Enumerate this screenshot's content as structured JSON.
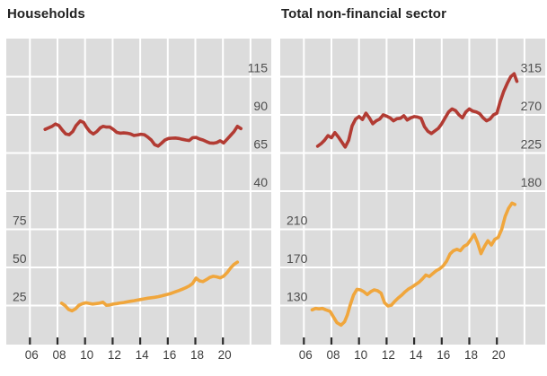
{
  "colors": {
    "red_line": "#b23b33",
    "orange_line": "#f0a63c",
    "plot_background": "#dcdcdc",
    "gridline": "#ffffff",
    "tick_mark": "#2b2b2b",
    "y_axis_label": "#4d4d4d",
    "x_axis_label": "#3d3d3d",
    "title": "#222222"
  },
  "chart_data": [
    {
      "type": "line",
      "title": "Households",
      "x_ticks": [
        "06",
        "08",
        "10",
        "12",
        "14",
        "16",
        "18",
        "20"
      ],
      "x_tick_years": [
        2006,
        2008,
        2010,
        2012,
        2014,
        2016,
        2018,
        2020
      ],
      "grid": true,
      "series": [
        {
          "name": "households-upper-line",
          "color_key": "red_line",
          "axis_side": "right",
          "axis_labels": [
            "115",
            "90",
            "65",
            "40"
          ],
          "axis_first_value": 115,
          "axis_step": 25,
          "x": [
            2007.1,
            2007.35,
            2007.6,
            2007.85,
            2008.1,
            2008.35,
            2008.6,
            2008.85,
            2009.1,
            2009.35,
            2009.65,
            2009.9,
            2010.1,
            2010.35,
            2010.6,
            2010.85,
            2011.1,
            2011.3,
            2011.55,
            2011.8,
            2012.05,
            2012.3,
            2012.55,
            2012.8,
            2013.05,
            2013.3,
            2013.55,
            2013.8,
            2014.05,
            2014.3,
            2014.55,
            2014.8,
            2015.05,
            2015.3,
            2015.55,
            2015.8,
            2016.05,
            2016.3,
            2016.55,
            2016.8,
            2017.05,
            2017.3,
            2017.55,
            2017.8,
            2018.05,
            2018.3,
            2018.55,
            2018.8,
            2019.05,
            2019.3,
            2019.55,
            2019.8,
            2020.05,
            2020.3,
            2020.55,
            2020.8,
            2021.05,
            2021.3
          ],
          "values": [
            80.5,
            81.5,
            82.5,
            84,
            83,
            80,
            77.5,
            77,
            79,
            83,
            86,
            85,
            82,
            79,
            77.5,
            79,
            81.5,
            82.5,
            82,
            82,
            80.5,
            78.5,
            78,
            78.2,
            78,
            77.5,
            76.5,
            76.8,
            77.3,
            77,
            75.5,
            73.5,
            70.5,
            69.5,
            71.5,
            73.5,
            74.5,
            74.7,
            74.8,
            74.5,
            74,
            73.5,
            73.2,
            75,
            75.2,
            74.2,
            73.5,
            72.5,
            71.6,
            71.4,
            71.8,
            73,
            71.6,
            74,
            76.5,
            79,
            82.5,
            81
          ]
        },
        {
          "name": "households-lower-line",
          "color_key": "orange_line",
          "axis_side": "left",
          "axis_labels": [
            "75",
            "50",
            "25"
          ],
          "axis_first_value": 75,
          "axis_step": 25,
          "x": [
            2008.3,
            2008.55,
            2008.8,
            2009.05,
            2009.3,
            2009.55,
            2009.8,
            2010.05,
            2010.3,
            2010.55,
            2010.8,
            2011.05,
            2011.3,
            2011.55,
            2011.8,
            2012.05,
            2012.3,
            2012.55,
            2012.8,
            2013.05,
            2013.3,
            2013.55,
            2013.8,
            2014.05,
            2014.3,
            2014.55,
            2014.8,
            2015.05,
            2015.3,
            2015.55,
            2015.8,
            2016.05,
            2016.3,
            2016.55,
            2016.8,
            2017.05,
            2017.3,
            2017.55,
            2017.8,
            2018.05,
            2018.3,
            2018.55,
            2018.8,
            2019.05,
            2019.3,
            2019.55,
            2019.8,
            2020.05,
            2020.3,
            2020.55,
            2020.8,
            2021.05
          ],
          "values": [
            26.5,
            25,
            22.5,
            21.5,
            22.8,
            25.2,
            26.2,
            26.8,
            26.4,
            26,
            26.3,
            26.6,
            27.2,
            25.2,
            25.4,
            26,
            26.3,
            26.7,
            27,
            27.4,
            27.8,
            28.2,
            28.6,
            29,
            29.4,
            29.8,
            30.1,
            30.4,
            30.8,
            31.3,
            31.9,
            32.5,
            33.2,
            34,
            34.8,
            35.7,
            36.7,
            37.8,
            39.5,
            43,
            41.2,
            40.7,
            42,
            43.5,
            44.2,
            43.8,
            43.2,
            44.3,
            46.5,
            49.5,
            52,
            53.5
          ]
        }
      ]
    },
    {
      "type": "line",
      "title": "Total non-financial sector",
      "x_ticks": [
        "06",
        "08",
        "10",
        "12",
        "14",
        "16",
        "18",
        "20"
      ],
      "x_tick_years": [
        2006,
        2008,
        2010,
        2012,
        2014,
        2016,
        2018,
        2020
      ],
      "grid": true,
      "series": [
        {
          "name": "total-upper-line",
          "color_key": "red_line",
          "axis_side": "right",
          "axis_labels": [
            "315",
            "270",
            "225",
            "180"
          ],
          "axis_first_value": 315,
          "axis_step": 45,
          "x": [
            2007.0,
            2007.25,
            2007.5,
            2007.75,
            2008.0,
            2008.25,
            2008.5,
            2008.75,
            2009.0,
            2009.25,
            2009.5,
            2009.75,
            2010.0,
            2010.25,
            2010.5,
            2010.75,
            2011.0,
            2011.25,
            2011.5,
            2011.75,
            2012.0,
            2012.25,
            2012.5,
            2012.75,
            2013.0,
            2013.25,
            2013.5,
            2013.75,
            2014.0,
            2014.25,
            2014.5,
            2014.75,
            2015.0,
            2015.25,
            2015.5,
            2015.75,
            2016.0,
            2016.25,
            2016.5,
            2016.75,
            2017.0,
            2017.25,
            2017.5,
            2017.75,
            2018.0,
            2018.25,
            2018.5,
            2018.75,
            2019.0,
            2019.25,
            2019.5,
            2019.75,
            2020.0,
            2020.25,
            2020.5,
            2020.75,
            2021.0,
            2021.25,
            2021.45
          ],
          "values": [
            233,
            236,
            240,
            245.5,
            243,
            249,
            244,
            238,
            232,
            240,
            257,
            265,
            268,
            264.5,
            272,
            266.5,
            259.5,
            263,
            265,
            270,
            268.5,
            266.5,
            263,
            265.5,
            266,
            269,
            264,
            266.5,
            268,
            267.5,
            266,
            256,
            250.5,
            248,
            251,
            254,
            259.5,
            266.5,
            273.5,
            277,
            275,
            270,
            266.5,
            273.5,
            277,
            274.5,
            273.5,
            271.5,
            266.5,
            263,
            265,
            270,
            272,
            286,
            298,
            307,
            315,
            318.5,
            309.5
          ]
        },
        {
          "name": "total-lower-line",
          "color_key": "orange_line",
          "axis_side": "left",
          "axis_labels": [
            "210",
            "170",
            "130"
          ],
          "axis_first_value": 210,
          "axis_step": 40,
          "x": [
            2006.6,
            2006.85,
            2007.1,
            2007.35,
            2007.6,
            2007.9,
            2008.15,
            2008.4,
            2008.7,
            2008.95,
            2009.15,
            2009.35,
            2009.6,
            2009.85,
            2010.1,
            2010.35,
            2010.6,
            2010.85,
            2011.1,
            2011.35,
            2011.6,
            2011.85,
            2012.1,
            2012.35,
            2012.6,
            2012.85,
            2013.1,
            2013.35,
            2013.6,
            2013.85,
            2014.1,
            2014.35,
            2014.6,
            2014.85,
            2015.1,
            2015.35,
            2015.6,
            2015.85,
            2016.1,
            2016.35,
            2016.6,
            2016.85,
            2017.1,
            2017.35,
            2017.6,
            2017.85,
            2018.1,
            2018.35,
            2018.6,
            2018.85,
            2019.1,
            2019.35,
            2019.6,
            2019.85,
            2020.1,
            2020.35,
            2020.6,
            2020.85,
            2021.1,
            2021.3
          ],
          "values": [
            125.5,
            127,
            126.5,
            127,
            125.5,
            124,
            118,
            112,
            109.5,
            113,
            120,
            130,
            141,
            147,
            146.5,
            144.5,
            141.5,
            144.5,
            146.5,
            145.5,
            143,
            133,
            129.5,
            130.5,
            134.5,
            138,
            141,
            144.5,
            147.5,
            149.5,
            152,
            154.5,
            158,
            162,
            160.5,
            163.5,
            166.5,
            168.5,
            171.5,
            176.5,
            184,
            187.5,
            189,
            187.5,
            192,
            194,
            199,
            204.5,
            196,
            184.5,
            192,
            198,
            193.5,
            199.5,
            201.5,
            210,
            223.5,
            232,
            237.5,
            236
          ]
        }
      ]
    }
  ]
}
